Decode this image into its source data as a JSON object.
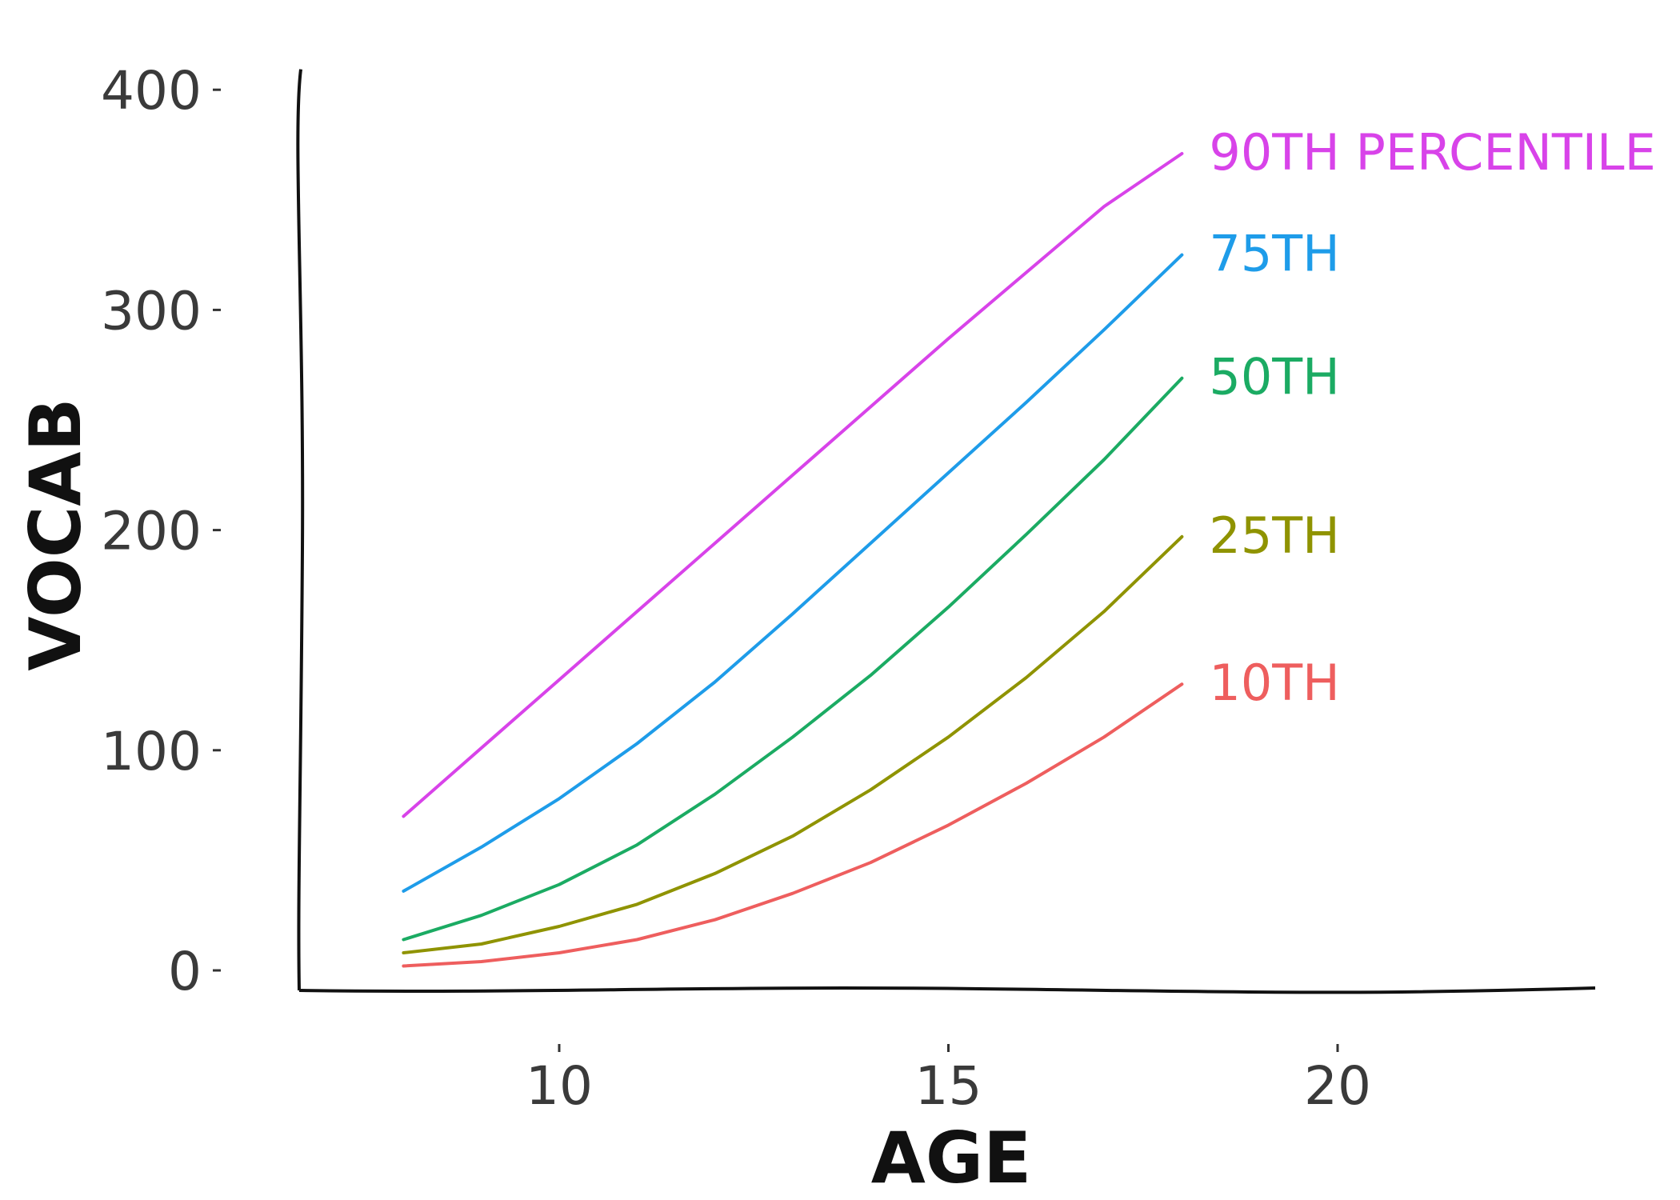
{
  "chart_data": {
    "type": "line",
    "title": "",
    "xlabel": "AGE",
    "ylabel": "VOCAB",
    "xlim": [
      7,
      23.5
    ],
    "ylim": [
      -8,
      410
    ],
    "x_ticks": [
      10,
      15,
      20
    ],
    "y_ticks": [
      0,
      100,
      200,
      300,
      400
    ],
    "x": [
      8,
      9,
      10,
      11,
      12,
      13,
      14,
      15,
      16,
      17,
      18
    ],
    "grid": false,
    "legend": "none (labels placed at line ends)",
    "series": [
      {
        "name": "10TH",
        "color": "#ee5e5e",
        "values": [
          2,
          4,
          8,
          14,
          23,
          35,
          49,
          66,
          85,
          106,
          130
        ]
      },
      {
        "name": "25TH",
        "color": "#8f9300",
        "values": [
          8,
          12,
          20,
          30,
          44,
          61,
          82,
          106,
          133,
          163,
          197
        ]
      },
      {
        "name": "50TH",
        "color": "#1bab63",
        "values": [
          14,
          25,
          39,
          57,
          80,
          106,
          134,
          165,
          198,
          232,
          269
        ]
      },
      {
        "name": "75TH",
        "color": "#1e9ce9",
        "values": [
          36,
          56,
          78,
          103,
          131,
          162,
          194,
          226,
          258,
          291,
          325
        ]
      },
      {
        "name": "90TH PERCENTILE",
        "color": "#d843e9",
        "values": [
          70,
          101,
          132,
          163,
          194,
          225,
          256,
          287,
          317,
          347,
          371
        ]
      }
    ]
  }
}
